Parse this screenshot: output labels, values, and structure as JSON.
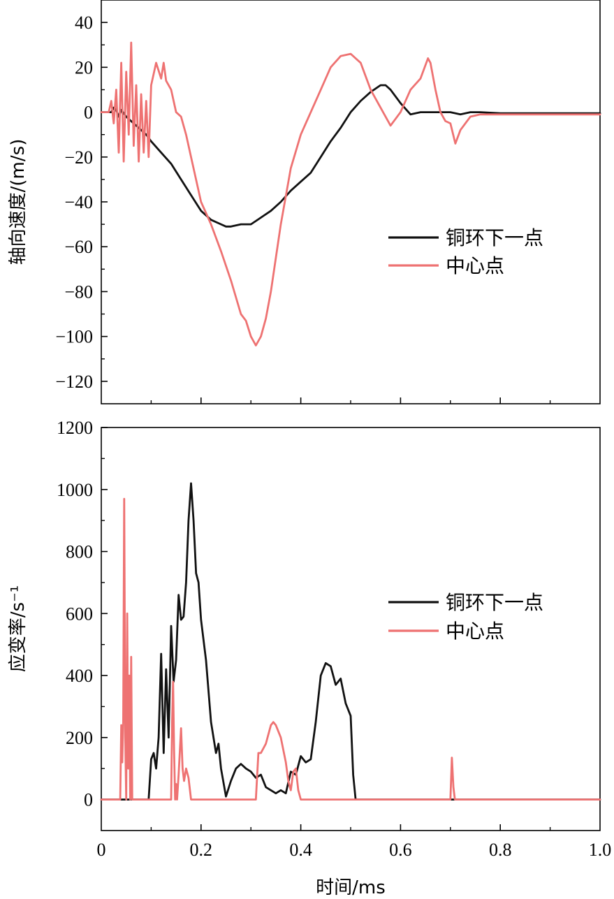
{
  "colors": {
    "series_black": "#111111",
    "series_pink": "#ee7272",
    "axis": "#000000",
    "background": "#ffffff"
  },
  "chart_data": [
    {
      "id": "top",
      "type": "line",
      "xlabel": "",
      "ylabel": "轴向速度/(m/s)",
      "xlim": [
        0,
        1.0
      ],
      "ylim": [
        -130,
        50
      ],
      "yticks": [
        40,
        20,
        0,
        -20,
        -40,
        -60,
        -80,
        -100,
        -120
      ],
      "ytick_labels": [
        "40",
        "20",
        "0",
        "−20",
        "−40",
        "−60",
        "−80",
        "−100",
        "−120"
      ],
      "xticks": [
        0,
        0.2,
        0.4,
        0.6,
        0.8,
        1.0
      ],
      "xtick_labels": [],
      "grid": false,
      "legend_position": "center-right",
      "series": [
        {
          "name": "铜环下一点",
          "color": "#111111",
          "x": [
            0,
            0.02,
            0.025,
            0.03,
            0.035,
            0.04,
            0.05,
            0.06,
            0.07,
            0.08,
            0.09,
            0.1,
            0.12,
            0.14,
            0.16,
            0.18,
            0.2,
            0.22,
            0.24,
            0.25,
            0.26,
            0.28,
            0.3,
            0.32,
            0.34,
            0.36,
            0.38,
            0.4,
            0.42,
            0.44,
            0.46,
            0.48,
            0.5,
            0.52,
            0.54,
            0.56,
            0.57,
            0.58,
            0.6,
            0.62,
            0.64,
            0.66,
            0.68,
            0.7,
            0.72,
            0.74,
            0.76,
            0.8,
            1.0
          ],
          "y": [
            0,
            0,
            2,
            1,
            -2,
            1,
            -2,
            -4,
            -6,
            -8,
            -10,
            -13,
            -18,
            -23,
            -30,
            -37,
            -44,
            -48,
            -50,
            -51,
            -51,
            -50,
            -50,
            -47,
            -44,
            -40,
            -35,
            -31,
            -27,
            -20,
            -13,
            -7,
            0,
            5,
            9,
            12,
            12,
            10,
            4,
            -1,
            0,
            0,
            0,
            0,
            -1,
            0,
            0,
            -0.5,
            -0.5
          ]
        },
        {
          "name": "中心点",
          "color": "#ee7272",
          "x": [
            0,
            0.015,
            0.02,
            0.025,
            0.03,
            0.035,
            0.04,
            0.045,
            0.05,
            0.055,
            0.06,
            0.065,
            0.07,
            0.075,
            0.08,
            0.085,
            0.09,
            0.095,
            0.1,
            0.11,
            0.12,
            0.125,
            0.13,
            0.14,
            0.15,
            0.16,
            0.17,
            0.18,
            0.2,
            0.22,
            0.24,
            0.26,
            0.28,
            0.29,
            0.3,
            0.31,
            0.32,
            0.33,
            0.34,
            0.36,
            0.38,
            0.4,
            0.42,
            0.44,
            0.46,
            0.48,
            0.5,
            0.52,
            0.54,
            0.56,
            0.58,
            0.6,
            0.62,
            0.64,
            0.655,
            0.66,
            0.67,
            0.68,
            0.69,
            0.7,
            0.71,
            0.72,
            0.74,
            0.76,
            0.8,
            1.0
          ],
          "y": [
            0,
            0,
            5,
            -5,
            10,
            -18,
            22,
            -22,
            18,
            -10,
            31,
            -15,
            12,
            -22,
            8,
            -18,
            5,
            -20,
            12,
            22,
            15,
            22,
            14,
            10,
            0,
            -2,
            -10,
            -20,
            -40,
            -50,
            -62,
            -75,
            -90,
            -93,
            -100,
            -104,
            -100,
            -92,
            -80,
            -50,
            -25,
            -10,
            0,
            10,
            20,
            25,
            26,
            22,
            10,
            2,
            -6,
            0,
            10,
            15,
            24,
            22,
            10,
            0,
            -4,
            -5,
            -14,
            -8,
            -2,
            -1,
            -1,
            -1
          ]
        }
      ]
    },
    {
      "id": "bottom",
      "type": "line",
      "xlabel": "时间/ms",
      "ylabel": "应变率/s⁻¹",
      "xlim": [
        0,
        1.0
      ],
      "ylim": [
        -100,
        1200
      ],
      "yticks": [
        1200,
        1000,
        800,
        600,
        400,
        200,
        0
      ],
      "ytick_labels": [
        "1200",
        "1000",
        "800",
        "600",
        "400",
        "200",
        "0"
      ],
      "xticks": [
        0,
        0.2,
        0.4,
        0.6,
        0.8,
        1.0
      ],
      "xtick_labels": [
        "0",
        "0.2",
        "0.4",
        "0.6",
        "0.8",
        "1.0"
      ],
      "grid": false,
      "legend_position": "center-right",
      "series": [
        {
          "name": "铜环下一点",
          "color": "#111111",
          "x": [
            0,
            0.095,
            0.1,
            0.105,
            0.11,
            0.115,
            0.12,
            0.125,
            0.13,
            0.135,
            0.14,
            0.145,
            0.15,
            0.155,
            0.16,
            0.165,
            0.17,
            0.175,
            0.18,
            0.185,
            0.19,
            0.195,
            0.2,
            0.21,
            0.22,
            0.23,
            0.235,
            0.24,
            0.25,
            0.26,
            0.27,
            0.28,
            0.29,
            0.3,
            0.31,
            0.32,
            0.33,
            0.34,
            0.35,
            0.36,
            0.37,
            0.38,
            0.39,
            0.4,
            0.41,
            0.42,
            0.43,
            0.44,
            0.45,
            0.46,
            0.47,
            0.48,
            0.49,
            0.5,
            0.505,
            0.51,
            1.0
          ],
          "y": [
            0,
            0,
            130,
            150,
            100,
            200,
            470,
            150,
            420,
            200,
            560,
            380,
            450,
            660,
            580,
            590,
            700,
            900,
            1020,
            900,
            730,
            700,
            580,
            450,
            250,
            150,
            180,
            100,
            10,
            60,
            100,
            115,
            100,
            90,
            70,
            80,
            40,
            30,
            20,
            30,
            20,
            90,
            80,
            140,
            120,
            130,
            250,
            400,
            440,
            430,
            370,
            390,
            310,
            270,
            80,
            0,
            0
          ]
        },
        {
          "name": "中心点",
          "color": "#ee7272",
          "x": [
            0,
            0.038,
            0.04,
            0.042,
            0.044,
            0.046,
            0.048,
            0.05,
            0.052,
            0.054,
            0.056,
            0.058,
            0.06,
            0.062,
            0.064,
            0.066,
            0.068,
            0.07,
            0.072,
            0.14,
            0.142,
            0.144,
            0.146,
            0.148,
            0.15,
            0.152,
            0.155,
            0.16,
            0.163,
            0.166,
            0.17,
            0.175,
            0.18,
            0.185,
            0.19,
            0.31,
            0.315,
            0.32,
            0.33,
            0.34,
            0.345,
            0.35,
            0.36,
            0.37,
            0.375,
            0.38,
            0.385,
            0.39,
            0.395,
            0.4,
            0.405,
            0.7,
            0.703,
            0.706,
            0.709,
            1.0
          ],
          "y": [
            0,
            0,
            240,
            120,
            250,
            970,
            200,
            0,
            600,
            100,
            400,
            0,
            460,
            0,
            0,
            0,
            0,
            0,
            0,
            0,
            250,
            380,
            160,
            0,
            50,
            0,
            80,
            230,
            100,
            60,
            100,
            70,
            0,
            0,
            0,
            0,
            150,
            150,
            180,
            240,
            250,
            240,
            200,
            120,
            60,
            30,
            90,
            100,
            30,
            0,
            0,
            0,
            135,
            40,
            0,
            0
          ]
        }
      ]
    }
  ]
}
